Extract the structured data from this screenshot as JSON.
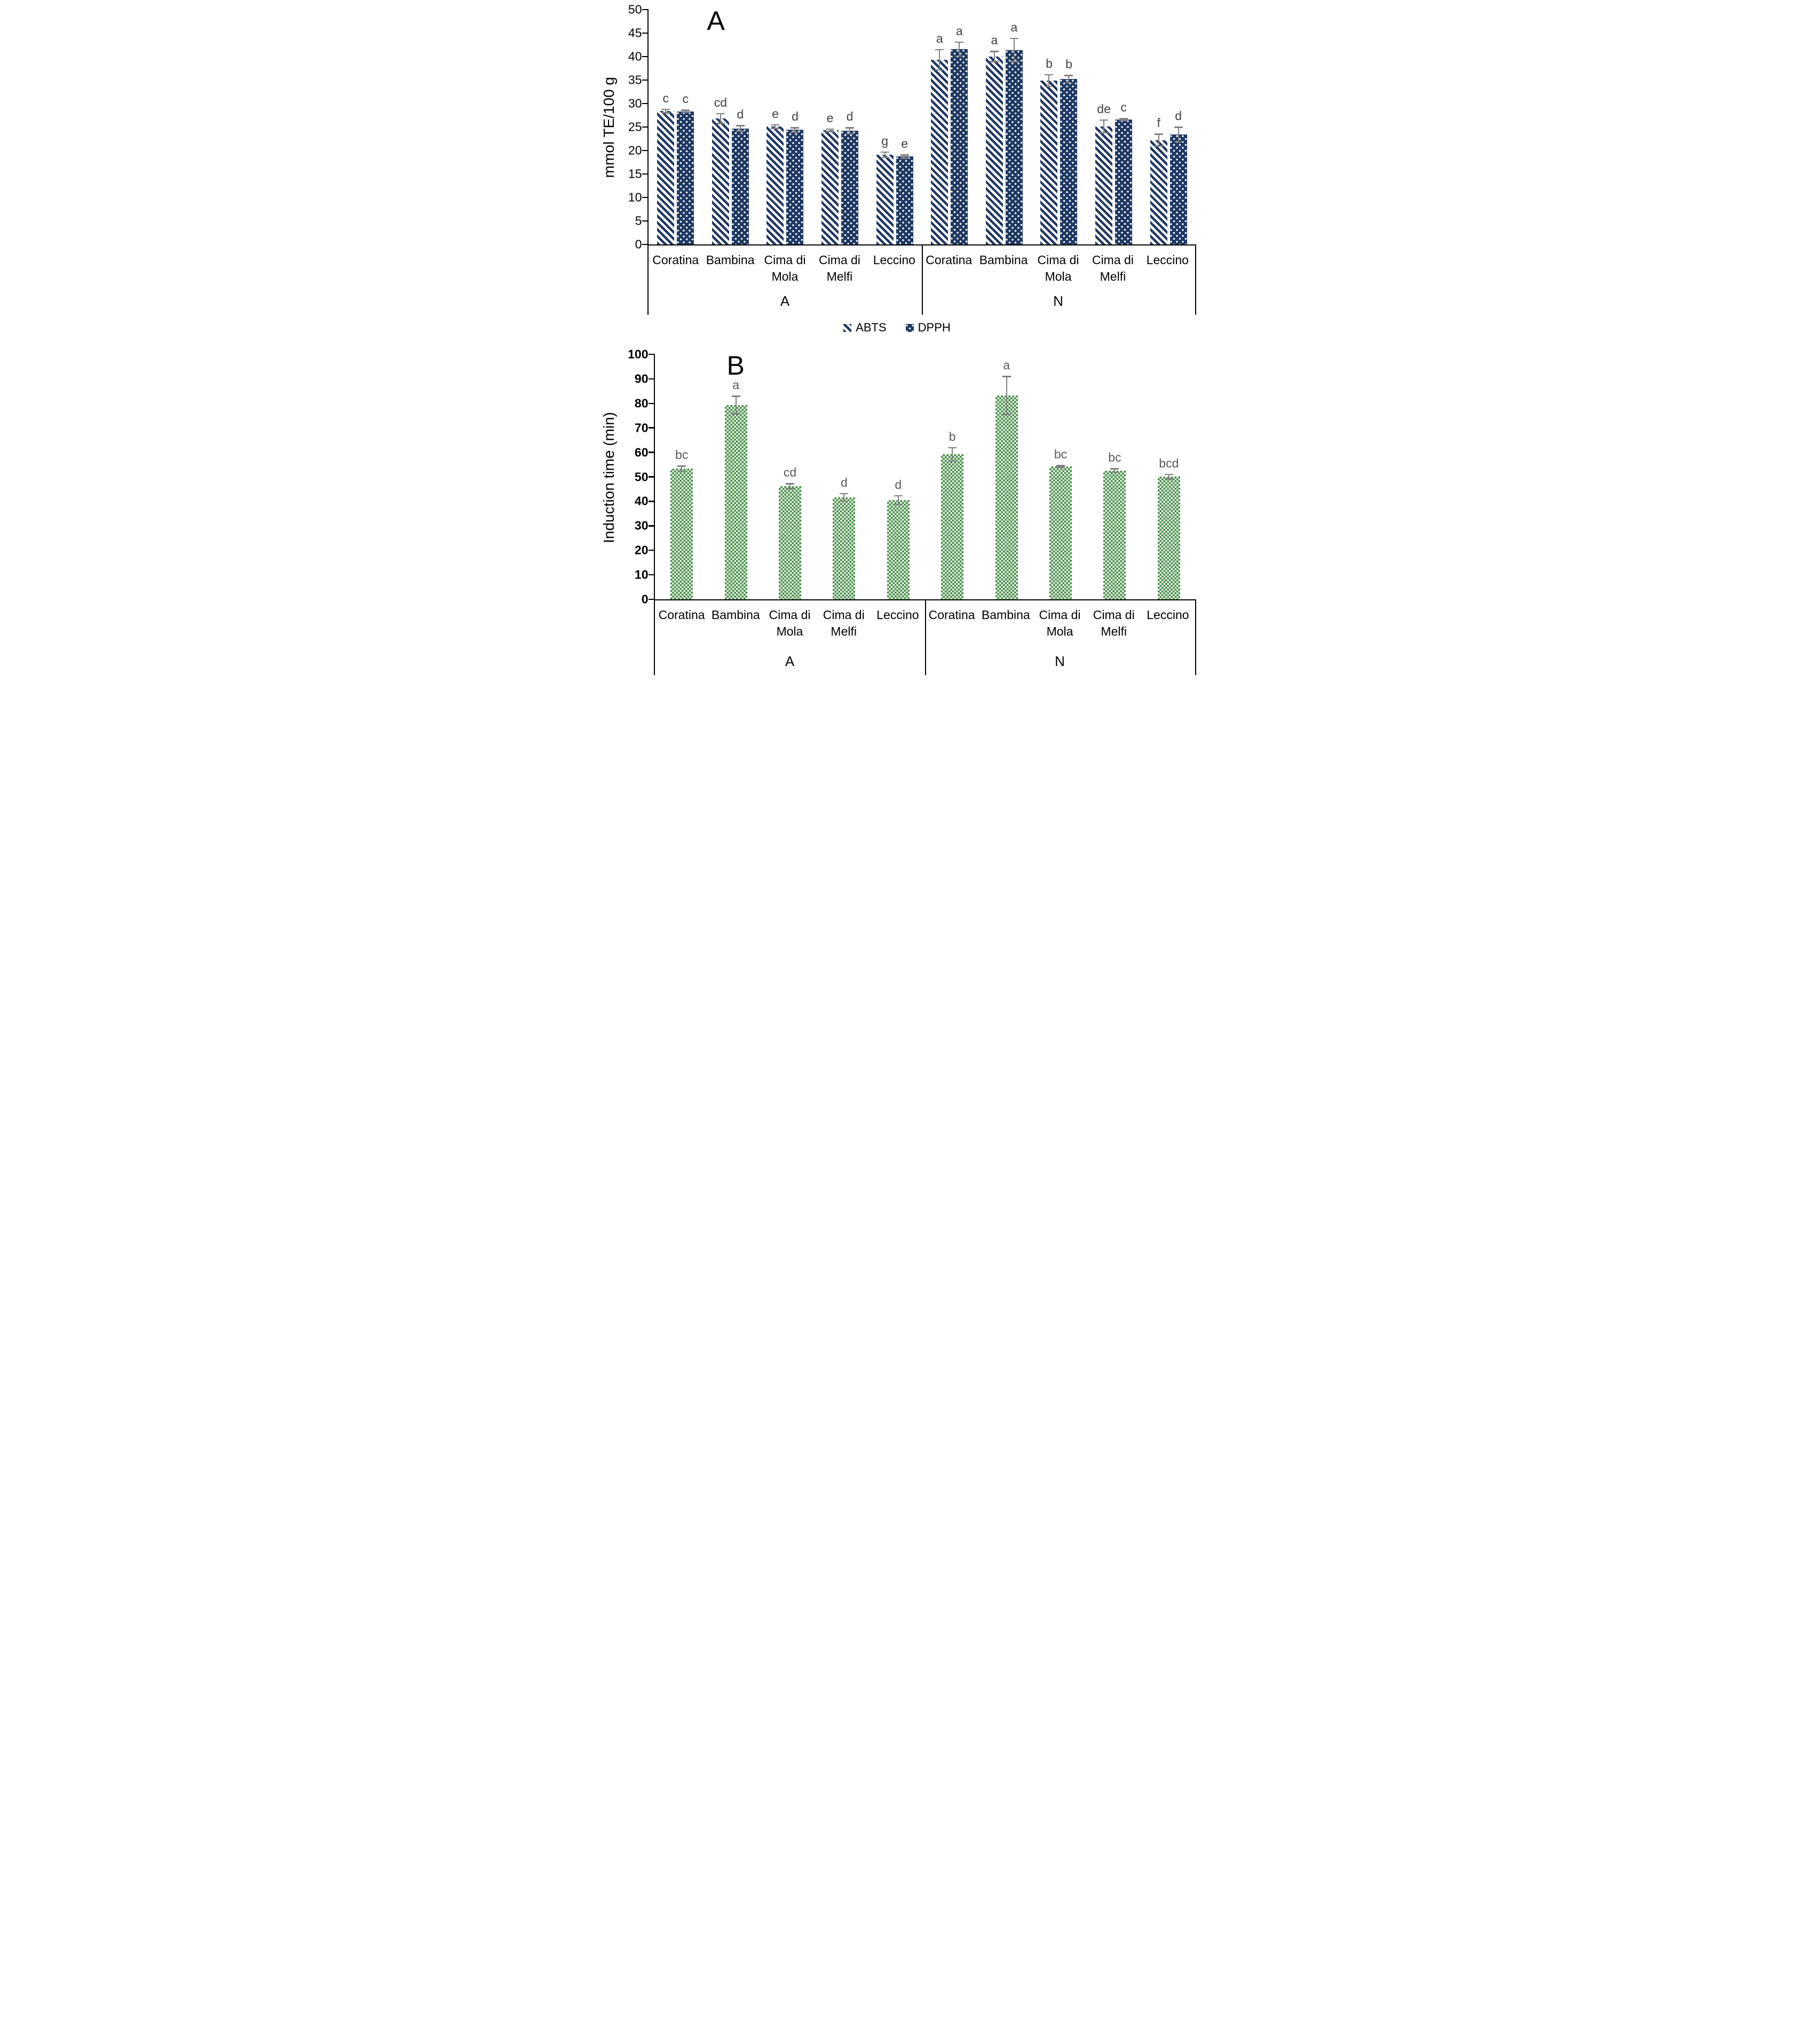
{
  "colors": {
    "navy": "#1f3864",
    "green": "#428a44",
    "error_bar": "#7f7f7f",
    "axis": "#000000",
    "letter_a": "#404040",
    "letter_b": "#595959"
  },
  "chart_data": [
    {
      "type": "bar",
      "panel": "A",
      "ylabel": "mmol TE/100 g",
      "ylim": [
        0,
        50
      ],
      "yticks": [
        0,
        5,
        10,
        15,
        20,
        25,
        30,
        35,
        40,
        45,
        50
      ],
      "grid": false,
      "legend_position": "bottom",
      "groups": [
        "A",
        "N"
      ],
      "categories": [
        "Coratina",
        "Bambina",
        "Cima di Mola",
        "Cima di Melfi",
        "Leccino"
      ],
      "series": [
        {
          "name": "ABTS",
          "pattern": "stripes",
          "values": {
            "A": [
              28.4,
              26.8,
              25.1,
              24.3,
              19.1
            ],
            "N": [
              39.3,
              40.0,
              34.9,
              25.1,
              22.2
            ]
          },
          "errors": {
            "A": [
              0.5,
              1.2,
              0.5,
              0.4,
              0.7
            ],
            "N": [
              2.3,
              1.2,
              1.4,
              1.5,
              1.4
            ]
          },
          "letters": {
            "A": [
              "c",
              "cd",
              "e",
              "e",
              "g"
            ],
            "N": [
              "a",
              "a",
              "b",
              "de",
              "f"
            ]
          }
        },
        {
          "name": "DPPH",
          "pattern": "dots",
          "values": {
            "A": [
              28.3,
              24.7,
              24.4,
              24.2,
              18.7
            ],
            "N": [
              41.6,
              41.4,
              35.2,
              26.6,
              23.4
            ]
          },
          "errors": {
            "A": [
              0.4,
              0.7,
              0.6,
              0.8,
              0.5
            ],
            "N": [
              1.6,
              2.6,
              0.9,
              0.3,
              1.7
            ]
          },
          "letters": {
            "A": [
              "c",
              "d",
              "d",
              "d",
              "e"
            ],
            "N": [
              "a",
              "a",
              "b",
              "c",
              "d"
            ]
          }
        }
      ],
      "legend": [
        "ABTS",
        "DPPH"
      ],
      "letter_color": "#404040"
    },
    {
      "type": "bar",
      "panel": "B",
      "ylabel": "Induction time (min)",
      "ylim": [
        0,
        100
      ],
      "yticks": [
        0,
        10,
        20,
        30,
        40,
        50,
        60,
        70,
        80,
        90,
        100
      ],
      "grid": false,
      "legend_position": "none",
      "groups": [
        "A",
        "N"
      ],
      "categories": [
        "Coratina",
        "Bambina",
        "Cima di Mola",
        "Cima di Melfi",
        "Leccino"
      ],
      "series": [
        {
          "name": "Induction time",
          "pattern": "checker",
          "values": {
            "A": [
              53.3,
              79.3,
              46.2,
              41.6,
              40.5
            ],
            "N": [
              59.2,
              83.2,
              54.2,
              52.6,
              50.1
            ]
          },
          "errors": {
            "A": [
              1.3,
              3.9,
              1.3,
              1.8,
              2.0
            ],
            "N": [
              3.0,
              8.0,
              0.6,
              1.0,
              1.2
            ]
          },
          "letters": {
            "A": [
              "bc",
              "a",
              "cd",
              "d",
              "d"
            ],
            "N": [
              "b",
              "a",
              "bc",
              "bc",
              "bcd"
            ]
          }
        }
      ],
      "legend": [],
      "letter_color": "#595959"
    }
  ]
}
